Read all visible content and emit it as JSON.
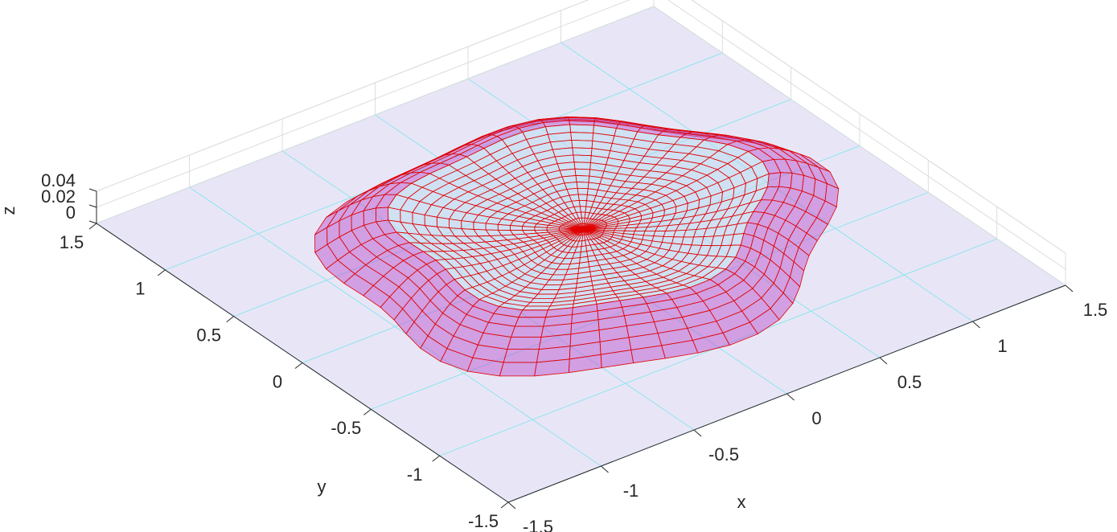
{
  "chart_data": {
    "type": "surface3d",
    "xlabel": "x",
    "ylabel": "y",
    "zlabel": "z",
    "xlim": [
      -1.5,
      1.5
    ],
    "xticks": [
      -1.5,
      -1,
      -0.5,
      0,
      0.5,
      1,
      1.5
    ],
    "ylim": [
      -1.5,
      1.5
    ],
    "yticks": [
      -1.5,
      -1,
      -0.5,
      0,
      0.5,
      1,
      1.5
    ],
    "zlim": [
      0,
      0.04
    ],
    "zticks": [
      0,
      0.02,
      0.04
    ],
    "grid": true,
    "color": "#e00000"
  }
}
